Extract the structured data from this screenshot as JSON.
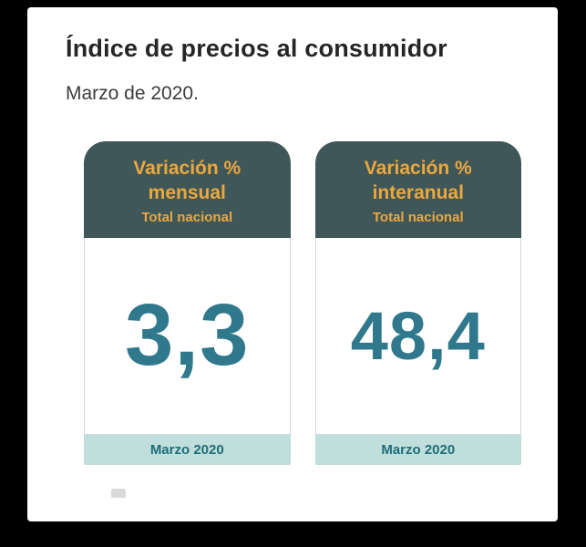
{
  "chart_data": {
    "type": "table",
    "title": "Índice de precios al consumidor",
    "subtitle": "Marzo de 2020.",
    "metrics": [
      {
        "label": "Variación % mensual",
        "scope": "Total nacional",
        "value": 3.3,
        "period": "Marzo 2020"
      },
      {
        "label": "Variación % interanual",
        "scope": "Total nacional",
        "value": 48.4,
        "period": "Marzo 2020"
      }
    ]
  },
  "page": {
    "title": "Índice de precios al consumidor",
    "subtitle": "Marzo de 2020."
  },
  "cards": [
    {
      "line1": "Variación %",
      "line2": "mensual",
      "line3": "Total nacional",
      "value": "3,3",
      "footer": "Marzo 2020"
    },
    {
      "line1": "Variación %",
      "line2": "interanual",
      "line3": "Total nacional",
      "value": "48,4",
      "footer": "Marzo 2020"
    }
  ],
  "colors": {
    "header_bg": "#405759",
    "accent_orange": "#eaa83e",
    "value_teal": "#30798c",
    "footer_bg": "#c0dedb",
    "footer_text": "#1d6e78"
  }
}
